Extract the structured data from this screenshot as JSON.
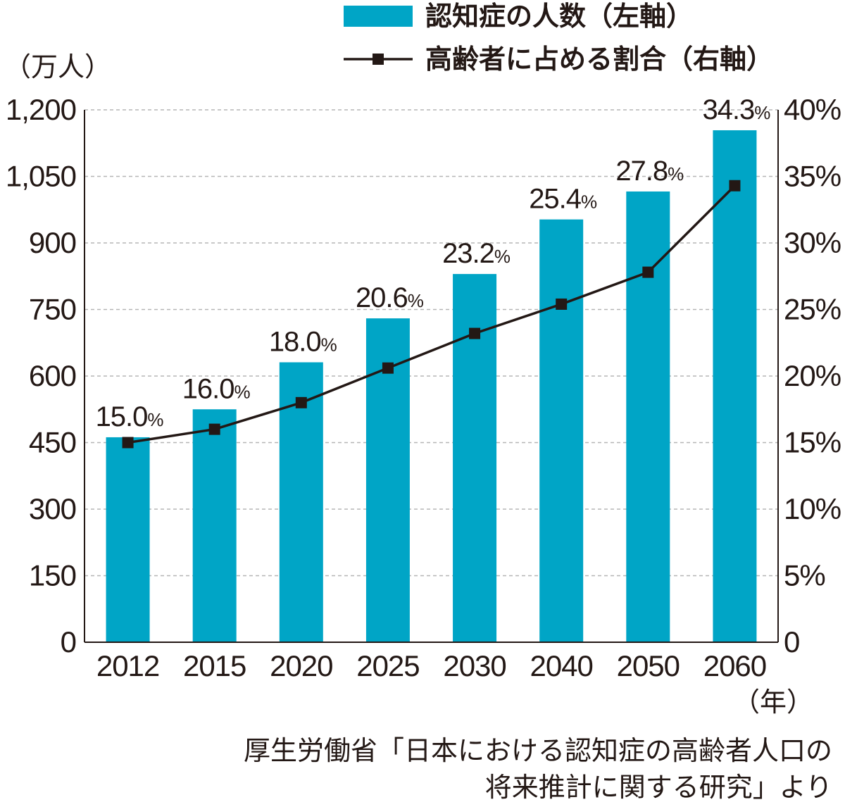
{
  "chart_data": {
    "type": "bar",
    "categories": [
      "2012",
      "2015",
      "2020",
      "2025",
      "2030",
      "2040",
      "2050",
      "2060"
    ],
    "series": [
      {
        "name": "認知症の人数（左軸）",
        "type": "bar",
        "axis": "left",
        "values": [
          462,
          525,
          631,
          730,
          830,
          953,
          1016,
          1154
        ]
      },
      {
        "name": "高齢者に占める割合（右軸）",
        "type": "line",
        "axis": "right",
        "values": [
          15.0,
          16.0,
          18.0,
          20.6,
          23.2,
          25.4,
          27.8,
          34.3
        ],
        "labels": [
          "15.0",
          "16.0",
          "18.0",
          "20.6",
          "23.2",
          "25.4",
          "27.8",
          "34.3"
        ],
        "label_unit": "%"
      }
    ],
    "left_axis": {
      "unit_label": "（万人）",
      "range": [
        0,
        1200
      ],
      "ticks": [
        "0",
        "150",
        "300",
        "450",
        "600",
        "750",
        "900",
        "1,050",
        "1,200"
      ]
    },
    "right_axis": {
      "range": [
        0,
        40
      ],
      "ticks": [
        "0",
        "5%",
        "10%",
        "15%",
        "20%",
        "25%",
        "30%",
        "35%",
        "40%"
      ]
    },
    "x_axis": {
      "unit_label": "（年）"
    },
    "grid": true,
    "legend_position": "top-right",
    "colors": {
      "bar": "#00a5c6",
      "line": "#231815",
      "grid": "#b5b5b5",
      "axis": "#231815"
    }
  },
  "source": {
    "line1": "厚生労働省「日本における認知症の高齢者人口の",
    "line2": "将来推計に関する研究」より"
  }
}
